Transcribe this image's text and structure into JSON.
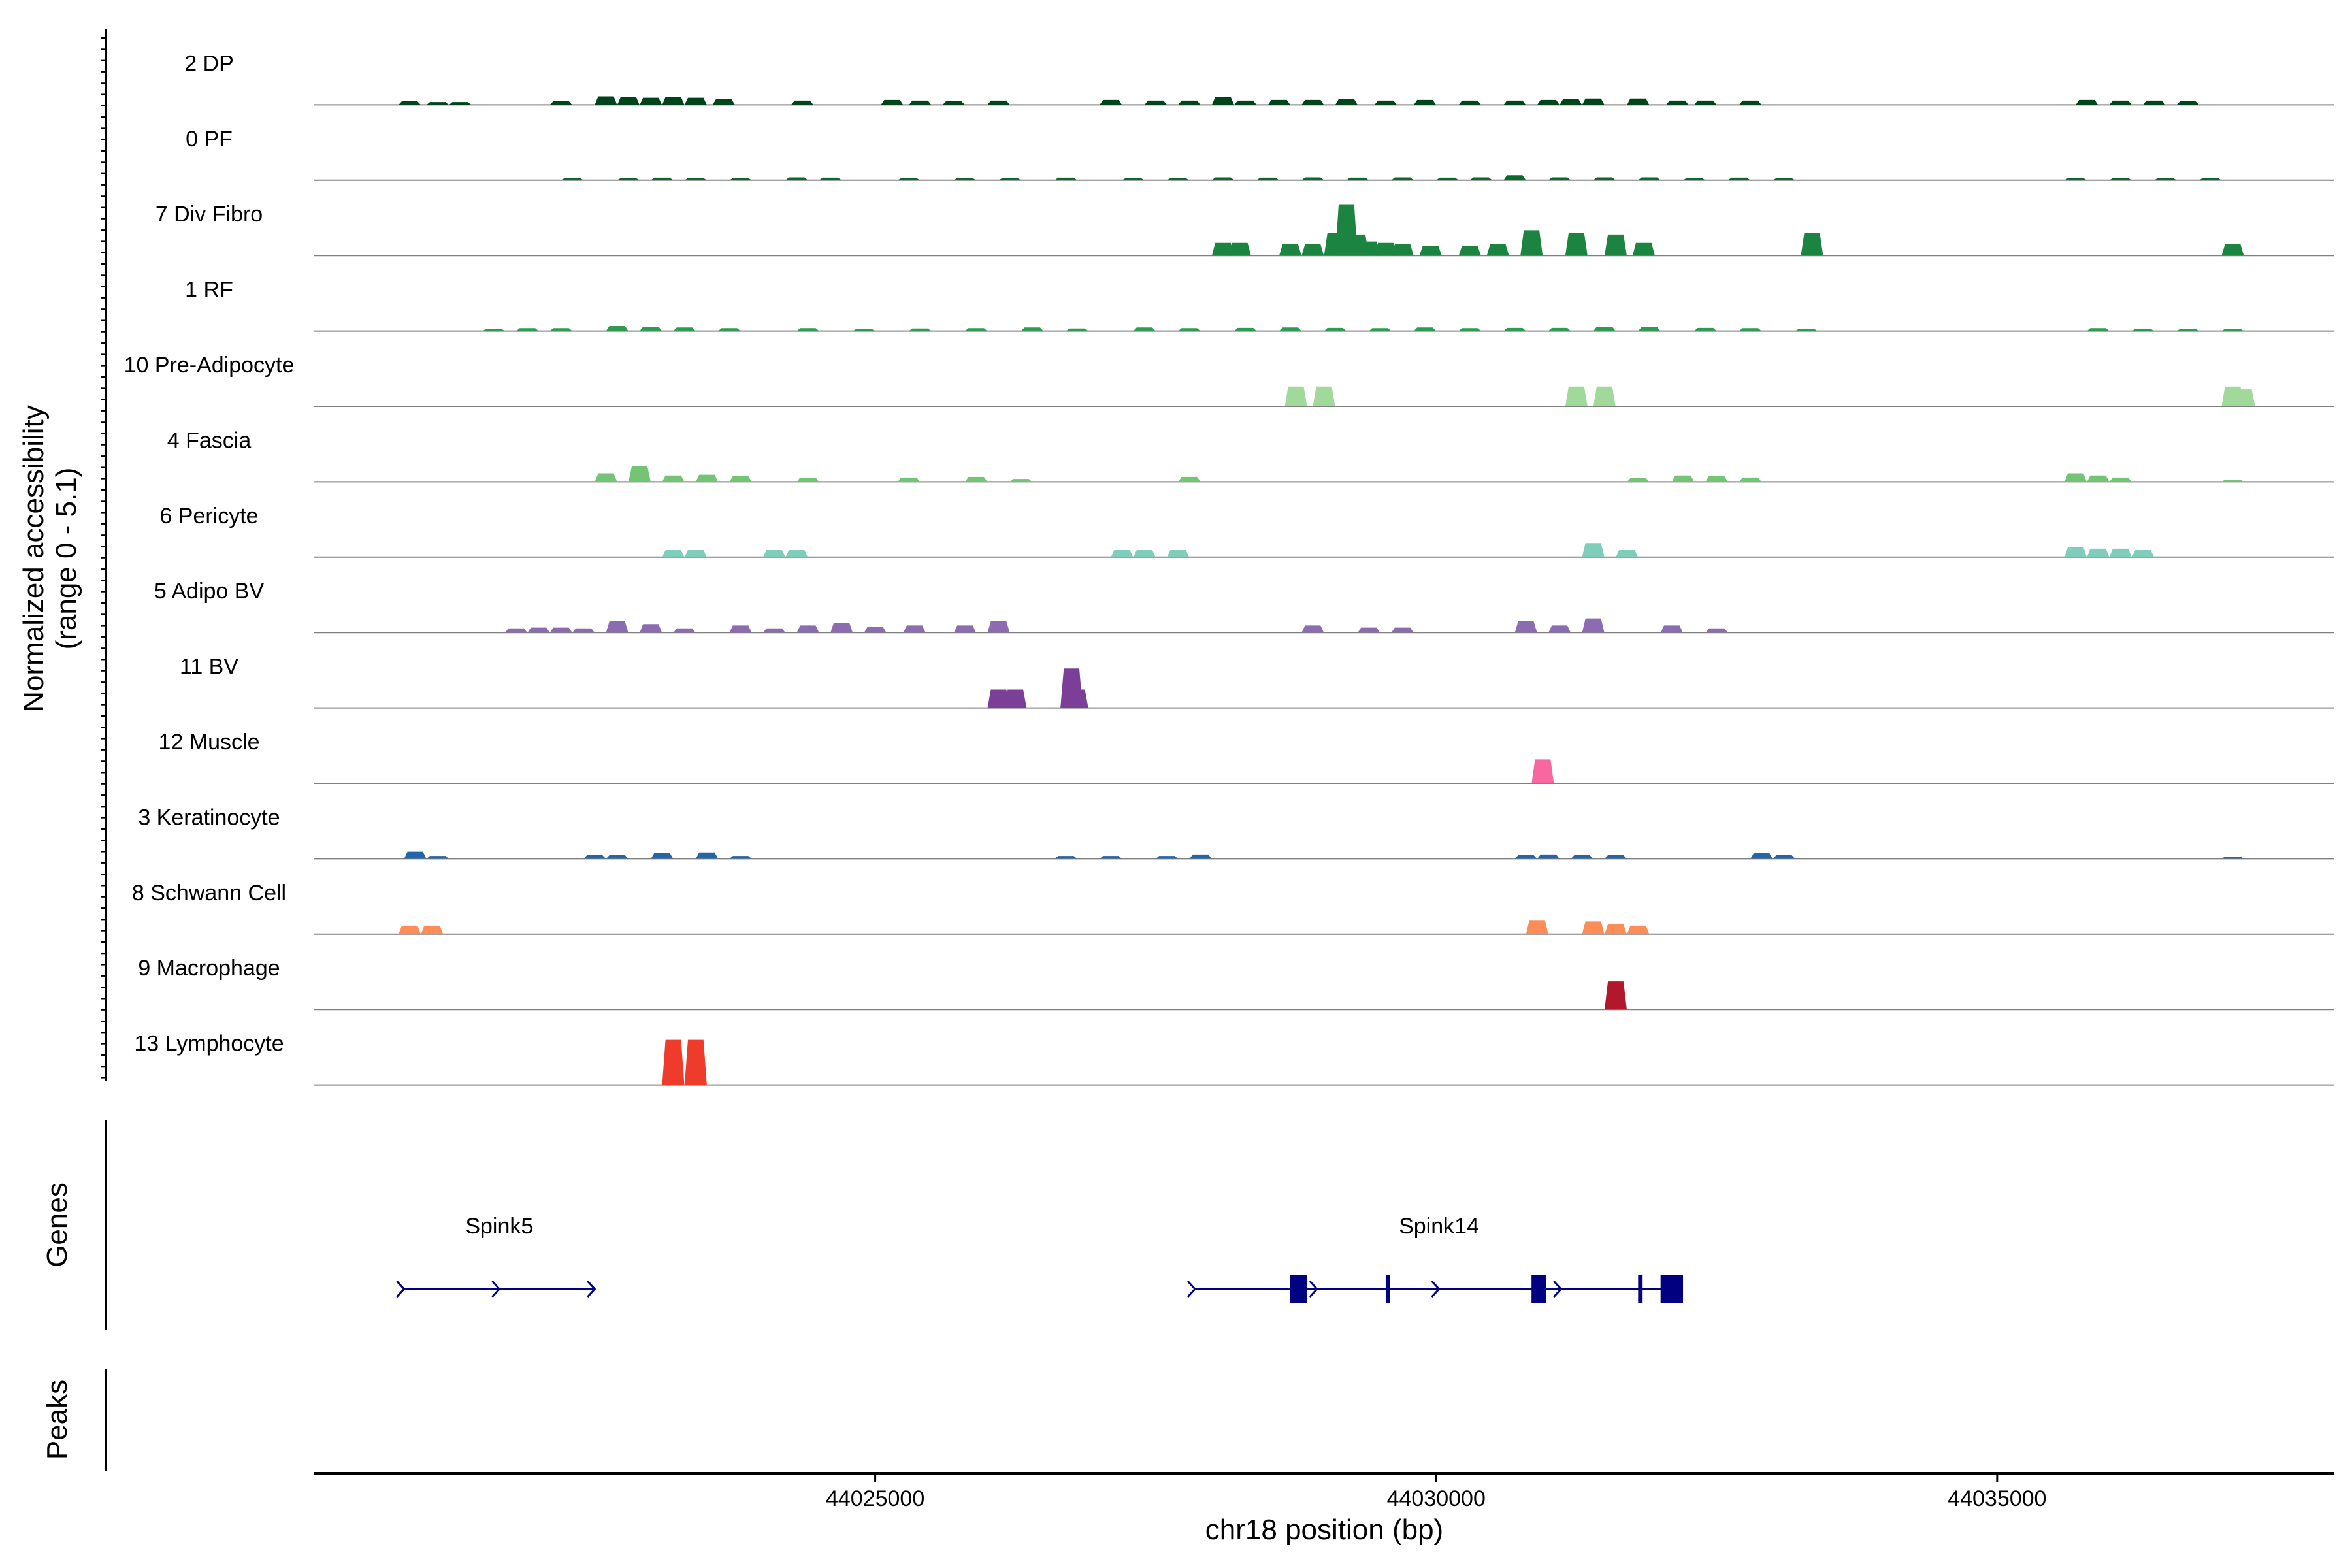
{
  "chart_data": {
    "type": "area",
    "title": "",
    "ylabel": "Normalized accessibility",
    "ylabel_range": "(range 0 - 5.1)",
    "ylim": [
      0,
      5.1
    ],
    "xlabel": "chr18 position (bp)",
    "xlim": [
      44020000,
      44038000
    ],
    "x_ticks": [
      44025000,
      44030000,
      44035000
    ],
    "x_tick_labels": [
      "44025000",
      "44030000",
      "44035000"
    ],
    "tracks": [
      {
        "name": "2 DP",
        "color": "#00441b",
        "peaks": [
          [
            44020850,
            0.25
          ],
          [
            44021100,
            0.2
          ],
          [
            44021300,
            0.2
          ],
          [
            44022200,
            0.25
          ],
          [
            44022600,
            0.6
          ],
          [
            44022800,
            0.55
          ],
          [
            44023000,
            0.5
          ],
          [
            44023200,
            0.55
          ],
          [
            44023400,
            0.5
          ],
          [
            44023650,
            0.4
          ],
          [
            44024350,
            0.3
          ],
          [
            44025150,
            0.35
          ],
          [
            44025400,
            0.3
          ],
          [
            44025700,
            0.25
          ],
          [
            44026100,
            0.3
          ],
          [
            44027100,
            0.35
          ],
          [
            44027500,
            0.3
          ],
          [
            44027800,
            0.3
          ],
          [
            44028100,
            0.55
          ],
          [
            44028300,
            0.3
          ],
          [
            44028600,
            0.35
          ],
          [
            44028900,
            0.35
          ],
          [
            44029200,
            0.4
          ],
          [
            44029550,
            0.3
          ],
          [
            44029900,
            0.35
          ],
          [
            44030300,
            0.3
          ],
          [
            44030700,
            0.3
          ],
          [
            44031000,
            0.35
          ],
          [
            44031200,
            0.4
          ],
          [
            44031400,
            0.45
          ],
          [
            44031800,
            0.45
          ],
          [
            44032150,
            0.3
          ],
          [
            44032400,
            0.3
          ],
          [
            44032800,
            0.3
          ],
          [
            44035800,
            0.35
          ],
          [
            44036100,
            0.3
          ],
          [
            44036400,
            0.3
          ],
          [
            44036700,
            0.25
          ]
        ]
      },
      {
        "name": "0 PF",
        "color": "#0a6a2c",
        "peaks": [
          [
            44022300,
            0.15
          ],
          [
            44022800,
            0.15
          ],
          [
            44023100,
            0.18
          ],
          [
            44023400,
            0.15
          ],
          [
            44023800,
            0.15
          ],
          [
            44024300,
            0.2
          ],
          [
            44024600,
            0.18
          ],
          [
            44025300,
            0.15
          ],
          [
            44025800,
            0.15
          ],
          [
            44026200,
            0.15
          ],
          [
            44026700,
            0.18
          ],
          [
            44027300,
            0.15
          ],
          [
            44027700,
            0.15
          ],
          [
            44028100,
            0.2
          ],
          [
            44028500,
            0.18
          ],
          [
            44028900,
            0.2
          ],
          [
            44029300,
            0.18
          ],
          [
            44029700,
            0.2
          ],
          [
            44030100,
            0.18
          ],
          [
            44030400,
            0.2
          ],
          [
            44030700,
            0.35
          ],
          [
            44031100,
            0.2
          ],
          [
            44031500,
            0.2
          ],
          [
            44031900,
            0.2
          ],
          [
            44032300,
            0.15
          ],
          [
            44032700,
            0.18
          ],
          [
            44033100,
            0.15
          ],
          [
            44035700,
            0.15
          ],
          [
            44036100,
            0.15
          ],
          [
            44036500,
            0.15
          ],
          [
            44036900,
            0.15
          ]
        ]
      },
      {
        "name": "7 Div Fibro",
        "color": "#1c8441",
        "peaks": [
          [
            44028100,
            0.9
          ],
          [
            44028250,
            0.9
          ],
          [
            44028700,
            0.8
          ],
          [
            44028900,
            0.8
          ],
          [
            44029100,
            1.6
          ],
          [
            44029200,
            3.6
          ],
          [
            44029300,
            1.5
          ],
          [
            44029400,
            1.0
          ],
          [
            44029550,
            0.9
          ],
          [
            44029700,
            0.8
          ],
          [
            44029950,
            0.7
          ],
          [
            44030300,
            0.7
          ],
          [
            44030550,
            0.8
          ],
          [
            44030850,
            1.8
          ],
          [
            44031250,
            1.6
          ],
          [
            44031600,
            1.5
          ],
          [
            44031850,
            0.9
          ],
          [
            44033350,
            1.6
          ],
          [
            44037100,
            0.8
          ]
        ]
      },
      {
        "name": "1 RF",
        "color": "#2f9a51",
        "peaks": [
          [
            44021600,
            0.15
          ],
          [
            44021900,
            0.2
          ],
          [
            44022200,
            0.2
          ],
          [
            44022700,
            0.35
          ],
          [
            44023000,
            0.3
          ],
          [
            44023300,
            0.25
          ],
          [
            44023700,
            0.2
          ],
          [
            44024400,
            0.2
          ],
          [
            44024900,
            0.15
          ],
          [
            44025400,
            0.18
          ],
          [
            44025900,
            0.2
          ],
          [
            44026400,
            0.25
          ],
          [
            44026800,
            0.18
          ],
          [
            44027400,
            0.25
          ],
          [
            44027800,
            0.2
          ],
          [
            44028300,
            0.22
          ],
          [
            44028700,
            0.25
          ],
          [
            44029100,
            0.22
          ],
          [
            44029500,
            0.2
          ],
          [
            44029900,
            0.25
          ],
          [
            44030300,
            0.2
          ],
          [
            44030700,
            0.22
          ],
          [
            44031100,
            0.22
          ],
          [
            44031500,
            0.3
          ],
          [
            44031900,
            0.28
          ],
          [
            44032400,
            0.22
          ],
          [
            44032800,
            0.2
          ],
          [
            44033300,
            0.15
          ],
          [
            44035900,
            0.2
          ],
          [
            44036300,
            0.15
          ],
          [
            44036700,
            0.15
          ],
          [
            44037100,
            0.15
          ]
        ]
      },
      {
        "name": "10 Pre-Adipocyte",
        "color": "#a1d99b",
        "peaks": [
          [
            44028750,
            1.4
          ],
          [
            44029000,
            1.4
          ],
          [
            44031250,
            1.4
          ],
          [
            44031500,
            1.4
          ],
          [
            44037100,
            1.4
          ],
          [
            44037200,
            1.2
          ]
        ]
      },
      {
        "name": "4 Fascia",
        "color": "#74c476",
        "peaks": [
          [
            44022600,
            0.6
          ],
          [
            44022900,
            1.1
          ],
          [
            44023200,
            0.45
          ],
          [
            44023500,
            0.5
          ],
          [
            44023800,
            0.4
          ],
          [
            44024400,
            0.3
          ],
          [
            44025300,
            0.3
          ],
          [
            44025900,
            0.35
          ],
          [
            44026300,
            0.2
          ],
          [
            44027800,
            0.35
          ],
          [
            44031800,
            0.25
          ],
          [
            44032200,
            0.45
          ],
          [
            44032500,
            0.4
          ],
          [
            44032800,
            0.3
          ],
          [
            44035700,
            0.6
          ],
          [
            44035900,
            0.45
          ],
          [
            44036100,
            0.3
          ],
          [
            44037100,
            0.15
          ]
        ]
      },
      {
        "name": "6 Pericyte",
        "color": "#7fcdbb",
        "peaks": [
          [
            44023200,
            0.5
          ],
          [
            44023400,
            0.5
          ],
          [
            44024100,
            0.5
          ],
          [
            44024300,
            0.5
          ],
          [
            44027200,
            0.5
          ],
          [
            44027400,
            0.5
          ],
          [
            44027700,
            0.5
          ],
          [
            44031400,
            1.0
          ],
          [
            44031700,
            0.5
          ],
          [
            44035700,
            0.7
          ],
          [
            44035900,
            0.6
          ],
          [
            44036100,
            0.6
          ],
          [
            44036300,
            0.5
          ]
        ]
      },
      {
        "name": "5 Adipo BV",
        "color": "#8c6bb1",
        "peaks": [
          [
            44021800,
            0.3
          ],
          [
            44022000,
            0.35
          ],
          [
            44022200,
            0.35
          ],
          [
            44022400,
            0.3
          ],
          [
            44022700,
            0.8
          ],
          [
            44023000,
            0.6
          ],
          [
            44023300,
            0.3
          ],
          [
            44023800,
            0.5
          ],
          [
            44024100,
            0.3
          ],
          [
            44024400,
            0.5
          ],
          [
            44024700,
            0.7
          ],
          [
            44025000,
            0.4
          ],
          [
            44025350,
            0.5
          ],
          [
            44025800,
            0.5
          ],
          [
            44026100,
            0.8
          ],
          [
            44028900,
            0.5
          ],
          [
            44029400,
            0.35
          ],
          [
            44029700,
            0.35
          ],
          [
            44030800,
            0.8
          ],
          [
            44031100,
            0.5
          ],
          [
            44031400,
            1.0
          ],
          [
            44032100,
            0.5
          ],
          [
            44032500,
            0.3
          ]
        ]
      },
      {
        "name": "11 BV",
        "color": "#7c3f97",
        "peaks": [
          [
            44026100,
            1.3
          ],
          [
            44026250,
            1.3
          ],
          [
            44026750,
            2.8
          ],
          [
            44026800,
            1.3
          ]
        ]
      },
      {
        "name": "12 Muscle",
        "color": "#f768a1",
        "peaks": [
          [
            44030950,
            1.7
          ]
        ]
      },
      {
        "name": "3 Keratinocyte",
        "color": "#2166ac",
        "peaks": [
          [
            44020900,
            0.5
          ],
          [
            44021100,
            0.2
          ],
          [
            44022500,
            0.25
          ],
          [
            44022700,
            0.25
          ],
          [
            44023100,
            0.4
          ],
          [
            44023500,
            0.45
          ],
          [
            44023800,
            0.2
          ],
          [
            44026700,
            0.2
          ],
          [
            44027100,
            0.2
          ],
          [
            44027600,
            0.2
          ],
          [
            44027900,
            0.3
          ],
          [
            44030800,
            0.25
          ],
          [
            44031000,
            0.3
          ],
          [
            44031300,
            0.25
          ],
          [
            44031600,
            0.25
          ],
          [
            44032900,
            0.4
          ],
          [
            44033100,
            0.25
          ],
          [
            44037100,
            0.15
          ]
        ]
      },
      {
        "name": "8 Schwann Cell",
        "color": "#fc8d59",
        "peaks": [
          [
            44020850,
            0.6
          ],
          [
            44021050,
            0.6
          ],
          [
            44030900,
            1.0
          ],
          [
            44031400,
            0.9
          ],
          [
            44031600,
            0.7
          ],
          [
            44031800,
            0.6
          ]
        ]
      },
      {
        "name": "9 Macrophage",
        "color": "#b2182b",
        "peaks": [
          [
            44031600,
            2.0
          ]
        ]
      },
      {
        "name": "13 Lymphocyte",
        "color": "#ef3b2c",
        "peaks": [
          [
            44023200,
            3.2
          ],
          [
            44023400,
            3.2
          ]
        ]
      }
    ],
    "genes_label": "Genes",
    "genes": [
      {
        "name": "Spink5",
        "start": 44020800,
        "end": 44022500,
        "strand": "+",
        "exons": []
      },
      {
        "name": "Spink14",
        "start": 44027850,
        "end": 44032200,
        "strand": "+",
        "exons": [
          [
            44028700,
            44028850
          ],
          [
            44029550,
            44029590
          ],
          [
            44030850,
            44030980
          ],
          [
            44031800,
            44031840
          ],
          [
            44032000,
            44032200
          ]
        ]
      }
    ],
    "peaks_label": "Peaks",
    "colors": {
      "axis": "#000000",
      "baseline": "#808080",
      "gene": "#000080"
    }
  }
}
